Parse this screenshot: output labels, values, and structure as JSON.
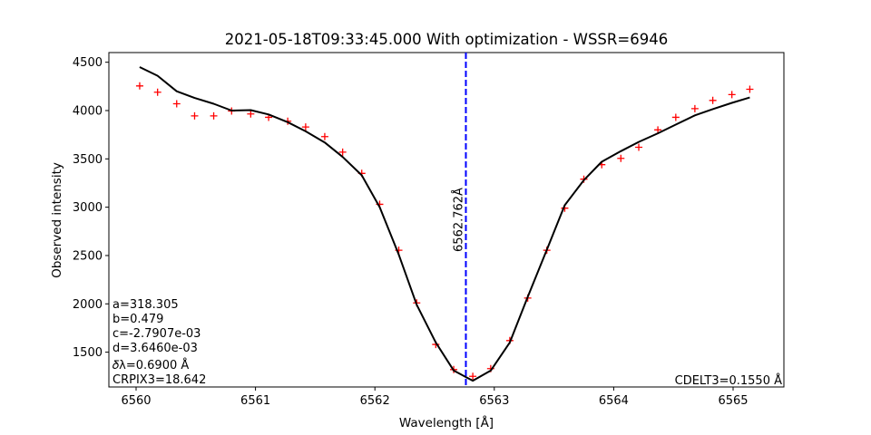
{
  "chart_data": {
    "type": "line",
    "title": "2021-05-18T09:33:45.000 With optimization - WSSR=6946",
    "xlabel": "Wavelength [Å]",
    "ylabel": "Observed intensity",
    "xlim": [
      5995.8,
      6565.3
    ],
    "ylim": [
      1140,
      4600
    ],
    "xticks": [
      6560,
      6561,
      6562,
      6563,
      6564,
      6565
    ],
    "yticks": [
      1500,
      2000,
      2500,
      3000,
      3500,
      4000,
      4500
    ],
    "grid": false,
    "series": [
      {
        "kind": "scatter",
        "marker": "+",
        "color": "#ff0000",
        "x": [
          6560.03,
          6560.18,
          6560.34,
          6560.49,
          6560.65,
          6560.8,
          6560.96,
          6561.11,
          6561.27,
          6561.42,
          6561.58,
          6561.73,
          6561.89,
          6562.04,
          6562.2,
          6562.35,
          6562.51,
          6562.66,
          6562.82,
          6562.97,
          6563.13,
          6563.28,
          6563.44,
          6563.59,
          6563.75,
          6563.9,
          6564.06,
          6564.21,
          6564.37,
          6564.52,
          6564.68,
          6564.83,
          6564.99,
          6565.14
        ],
        "y": [
          4255,
          4190,
          4070,
          3945,
          3945,
          3995,
          3965,
          3930,
          3890,
          3830,
          3730,
          3570,
          3350,
          3030,
          2555,
          2010,
          1580,
          1320,
          1250,
          1330,
          1620,
          2060,
          2555,
          2990,
          3290,
          3440,
          3505,
          3620,
          3800,
          3930,
          4020,
          4105,
          4165,
          4220
        ]
      },
      {
        "kind": "line",
        "color": "#000000",
        "x": [
          6560.03,
          6560.18,
          6560.34,
          6560.49,
          6560.65,
          6560.8,
          6560.96,
          6561.11,
          6561.27,
          6561.42,
          6561.58,
          6561.73,
          6561.89,
          6562.04,
          6562.2,
          6562.35,
          6562.51,
          6562.66,
          6562.82,
          6562.97,
          6563.13,
          6563.28,
          6563.44,
          6563.59,
          6563.75,
          6563.9,
          6564.06,
          6564.21,
          6564.37,
          6564.52,
          6564.68,
          6564.83,
          6564.99,
          6565.14
        ],
        "y": [
          4450,
          4360,
          4200,
          4130,
          4070,
          4000,
          4005,
          3960,
          3880,
          3785,
          3670,
          3520,
          3330,
          3000,
          2510,
          1990,
          1600,
          1310,
          1205,
          1310,
          1600,
          2070,
          2560,
          3020,
          3280,
          3470,
          3580,
          3675,
          3765,
          3855,
          3950,
          4015,
          4080,
          4135
        ]
      }
    ],
    "vline": {
      "x": 6562.762,
      "label": "6562.762Å",
      "color": "#0000ff"
    },
    "annotations_left": [
      "a=318.305",
      "b=0.479",
      "c=-2.7907e-03",
      "d=3.6460e-03",
      "𝛿λ=0.6900 Å",
      "CRPIX3=18.642"
    ],
    "annotation_right": "CDELT3=0.1550 Å"
  }
}
